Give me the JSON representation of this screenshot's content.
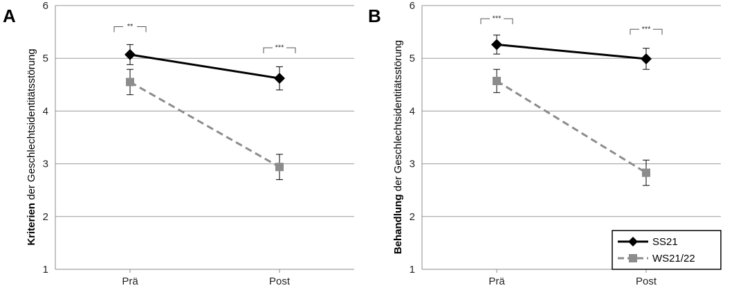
{
  "colors": {
    "series_1": "#000000",
    "series_2": "#8c8c8c",
    "grid": "#9a9a9a",
    "axis": "#888888"
  },
  "legend": {
    "position": "bottom-right of panel B",
    "entries": [
      "SS21",
      "WS21/22"
    ]
  },
  "chart_data": [
    {
      "type": "line",
      "panel_label": "A",
      "ylabel_bold": "Kriterien",
      "ylabel_rest": " der Geschlechtsidentitätsstörung",
      "categories": [
        "Prä",
        "Post"
      ],
      "ylim": [
        1,
        6
      ],
      "yticks": [
        1,
        2,
        3,
        4,
        5,
        6
      ],
      "grid": true,
      "series": [
        {
          "name": "SS21",
          "values": [
            5.07,
            4.62
          ],
          "errors": [
            0.19,
            0.22
          ],
          "marker": "diamond",
          "line": "solid"
        },
        {
          "name": "WS21/22",
          "values": [
            4.55,
            2.94
          ],
          "errors": [
            0.24,
            0.24
          ],
          "marker": "square",
          "line": "dashed"
        }
      ],
      "annotations": [
        {
          "category": "Prä",
          "text": "**",
          "y": 5.6
        },
        {
          "category": "Post",
          "text": "***",
          "y": 5.2
        }
      ]
    },
    {
      "type": "line",
      "panel_label": "B",
      "ylabel_bold": "Behandlung",
      "ylabel_rest": " der Geschlechtsidentitätsstörung",
      "categories": [
        "Prä",
        "Post"
      ],
      "ylim": [
        1,
        6
      ],
      "yticks": [
        1,
        2,
        3,
        4,
        5,
        6
      ],
      "grid": true,
      "series": [
        {
          "name": "SS21",
          "values": [
            5.26,
            4.99
          ],
          "errors": [
            0.18,
            0.2
          ],
          "marker": "diamond",
          "line": "solid"
        },
        {
          "name": "WS21/22",
          "values": [
            4.57,
            2.83
          ],
          "errors": [
            0.22,
            0.24
          ],
          "marker": "square",
          "line": "dashed"
        }
      ],
      "annotations": [
        {
          "category": "Prä",
          "text": "***",
          "y": 5.75
        },
        {
          "category": "Post",
          "text": "***",
          "y": 5.55
        }
      ]
    }
  ]
}
